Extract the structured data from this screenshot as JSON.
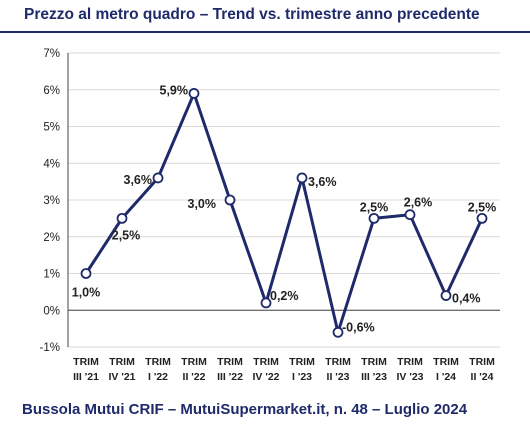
{
  "header": {
    "title": "Prezzo al metro quadro – Trend vs. trimestre anno precedente"
  },
  "footer": {
    "text": "Bussola Mutui CRIF – MutuiSupermarket.it, n. 48 – Luglio 2024"
  },
  "colors": {
    "line": "#1f2a6b",
    "grid": "#d9d9d9",
    "title": "#1f2a6b"
  },
  "chart_data": {
    "type": "line",
    "title": "Prezzo al metro quadro – Trend vs. trimestre anno precedente",
    "xlabel": "",
    "ylabel": "",
    "ylim": [
      -1,
      7
    ],
    "y_ticks": [
      "-1%",
      "0%",
      "1%",
      "2%",
      "3%",
      "4%",
      "5%",
      "6%",
      "7%"
    ],
    "grid": "horizontal",
    "categories": [
      [
        "TRIM",
        "III '21"
      ],
      [
        "TRIM",
        "IV '21"
      ],
      [
        "TRIM",
        "I '22"
      ],
      [
        "TRIM",
        "II '22"
      ],
      [
        "TRIM",
        "III '22"
      ],
      [
        "TRIM",
        "IV '22"
      ],
      [
        "TRIM",
        "I '23"
      ],
      [
        "TRIM",
        "II '23"
      ],
      [
        "TRIM",
        "III '23"
      ],
      [
        "TRIM",
        "IV '23"
      ],
      [
        "TRIM",
        "I '24"
      ],
      [
        "TRIM",
        "II '24"
      ]
    ],
    "values": [
      1.0,
      2.5,
      3.6,
      5.9,
      3.0,
      0.2,
      3.6,
      -0.6,
      2.5,
      2.6,
      0.4,
      2.5
    ],
    "data_labels": [
      "1,0%",
      "2,5%",
      "3,6%",
      "5,9%",
      "3,0%",
      "0,2%",
      "3,6%",
      "-0,6%",
      "2,5%",
      "2,6%",
      "0,4%",
      "2,5%"
    ]
  }
}
